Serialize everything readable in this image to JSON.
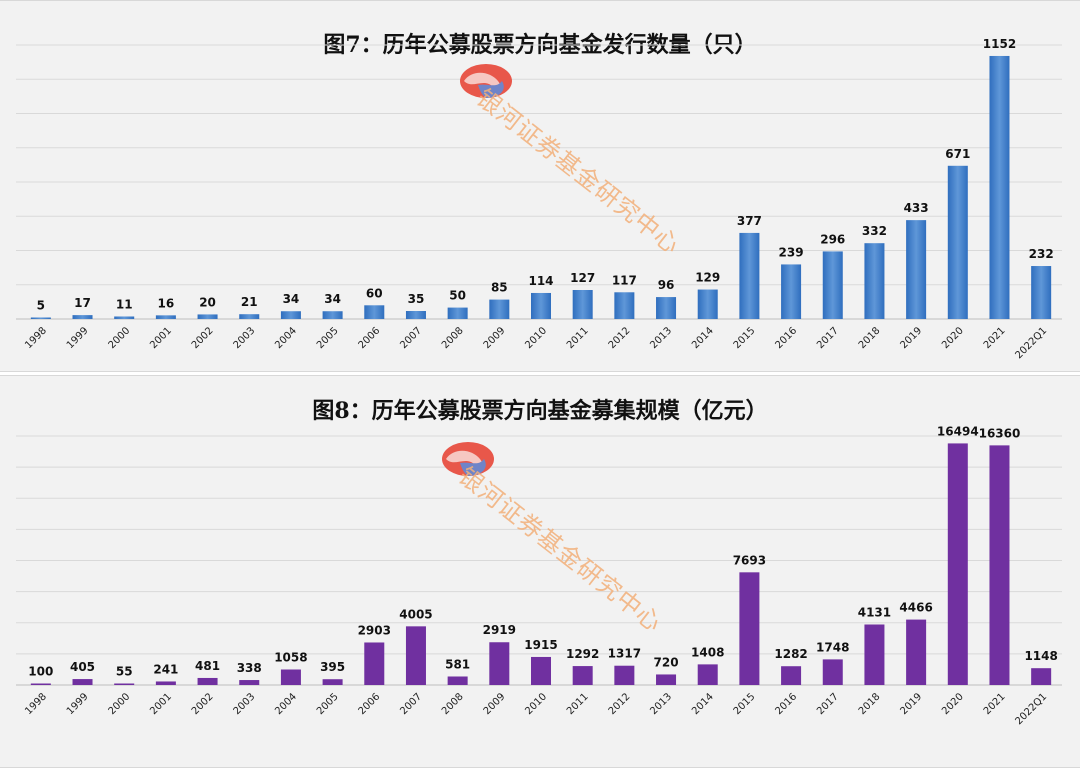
{
  "chart_data": [
    {
      "type": "bar",
      "title": "图7：历年公募股票方向基金发行数量（只）",
      "categories": [
        "1998",
        "1999",
        "2000",
        "2001",
        "2002",
        "2003",
        "2004",
        "2005",
        "2006",
        "2007",
        "2008",
        "2009",
        "2010",
        "2011",
        "2012",
        "2013",
        "2014",
        "2015",
        "2016",
        "2017",
        "2018",
        "2019",
        "2020",
        "2021",
        "2022Q1"
      ],
      "values": [
        5,
        17,
        11,
        16,
        20,
        21,
        34,
        34,
        60,
        35,
        50,
        85,
        114,
        127,
        117,
        96,
        129,
        377,
        239,
        296,
        332,
        433,
        671,
        1152,
        232
      ],
      "ylim": [
        0,
        1200
      ],
      "grid": true,
      "color": "#2f6ebe",
      "color_light": "#5f97d8"
    },
    {
      "type": "bar",
      "title": "图8：历年公募股票方向基金募集规模（亿元）",
      "categories": [
        "1998",
        "1999",
        "2000",
        "2001",
        "2002",
        "2003",
        "2004",
        "2005",
        "2006",
        "2007",
        "2008",
        "2009",
        "2010",
        "2011",
        "2012",
        "2013",
        "2014",
        "2015",
        "2016",
        "2017",
        "2018",
        "2019",
        "2020",
        "2021",
        "2022Q1"
      ],
      "values": [
        100,
        405,
        55,
        241,
        481,
        338,
        1058,
        395,
        2903,
        4005,
        581,
        2919,
        1915,
        1292,
        1317,
        720,
        1408,
        7693,
        1282,
        1748,
        4131,
        4466,
        16494,
        16360,
        1148
      ],
      "ylim": [
        0,
        17000
      ],
      "grid": true,
      "color": "#7030a0"
    }
  ],
  "watermark": {
    "text": "银河证券基金研究中心",
    "logo_icon": "galaxy-securities-logo-icon",
    "logo_colors": [
      "#e8574a",
      "#6f84c8"
    ]
  }
}
